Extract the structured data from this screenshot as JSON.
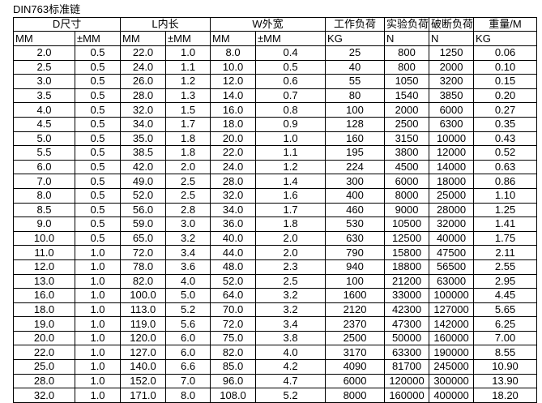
{
  "title": "DIN763标准链",
  "header_groups": [
    "D尺寸",
    "L内长",
    "W外宽",
    "工作负荷",
    "实验负荷",
    "破断负荷",
    "重量/M"
  ],
  "units": [
    "MM",
    "±MM",
    "MM",
    "±MM",
    "MM",
    "±MM",
    "KG",
    "N",
    "N",
    "KG"
  ],
  "rows": [
    [
      "2.0",
      "0.5",
      "22.0",
      "1.0",
      "8.0",
      "0.4",
      "25",
      "800",
      "1250",
      "0.06"
    ],
    [
      "2.5",
      "0.5",
      "24.0",
      "1.1",
      "10.0",
      "0.5",
      "40",
      "800",
      "2000",
      "0.10"
    ],
    [
      "3.0",
      "0.5",
      "26.0",
      "1.2",
      "12.0",
      "0.6",
      "55",
      "1050",
      "3200",
      "0.15"
    ],
    [
      "3.5",
      "0.5",
      "28.0",
      "1.3",
      "14.0",
      "0.7",
      "80",
      "1540",
      "3850",
      "0.20"
    ],
    [
      "4.0",
      "0.5",
      "32.0",
      "1.5",
      "16.0",
      "0.8",
      "100",
      "2000",
      "6000",
      "0.27"
    ],
    [
      "4.5",
      "0.5",
      "34.0",
      "1.7",
      "18.0",
      "0.9",
      "128",
      "2500",
      "6300",
      "0.35"
    ],
    [
      "5.0",
      "0.5",
      "35.0",
      "1.8",
      "20.0",
      "1.0",
      "160",
      "3150",
      "10000",
      "0.43"
    ],
    [
      "5.5",
      "0.5",
      "38.5",
      "1.8",
      "22.0",
      "1.1",
      "195",
      "3800",
      "12000",
      "0.52"
    ],
    [
      "6.0",
      "0.5",
      "42.0",
      "2.0",
      "24.0",
      "1.2",
      "224",
      "4500",
      "14000",
      "0.63"
    ],
    [
      "7.0",
      "0.5",
      "49.0",
      "2.5",
      "28.0",
      "1.4",
      "300",
      "6000",
      "18000",
      "0.86"
    ],
    [
      "8.0",
      "0.5",
      "52.0",
      "2.5",
      "32.0",
      "1.6",
      "400",
      "8000",
      "25000",
      "1.10"
    ],
    [
      "8.5",
      "0.5",
      "56.0",
      "2.8",
      "34.0",
      "1.7",
      "460",
      "9000",
      "28000",
      "1.25"
    ],
    [
      "9.0",
      "0.5",
      "59.0",
      "3.0",
      "36.0",
      "1.8",
      "530",
      "10500",
      "32000",
      "1.41"
    ],
    [
      "10.0",
      "0.5",
      "65.0",
      "3.2",
      "40.0",
      "2.0",
      "630",
      "12500",
      "40000",
      "1.75"
    ],
    [
      "11.0",
      "1.0",
      "72.0",
      "3.4",
      "44.0",
      "2.0",
      "790",
      "15800",
      "47500",
      "2.11"
    ],
    [
      "12.0",
      "1.0",
      "78.0",
      "3.6",
      "48.0",
      "2.3",
      "940",
      "18800",
      "56500",
      "2.55"
    ],
    [
      "13.0",
      "1.0",
      "82.0",
      "4.0",
      "52.0",
      "2.5",
      "100",
      "21200",
      "63000",
      "2.95"
    ],
    [
      "16.0",
      "1.0",
      "100.0",
      "5.0",
      "64.0",
      "3.2",
      "1600",
      "33000",
      "100000",
      "4.45"
    ],
    [
      "18.0",
      "1.0",
      "113.0",
      "5.2",
      "70.0",
      "3.2",
      "2120",
      "42300",
      "127000",
      "5.65"
    ],
    [
      "19.0",
      "1.0",
      "119.0",
      "5.6",
      "72.0",
      "3.4",
      "2370",
      "47300",
      "142000",
      "6.25"
    ],
    [
      "20.0",
      "1.0",
      "120.0",
      "6.0",
      "75.0",
      "3.8",
      "2500",
      "50000",
      "160000",
      "7.00"
    ],
    [
      "22.0",
      "1.0",
      "127.0",
      "6.0",
      "82.0",
      "4.0",
      "3170",
      "63300",
      "190000",
      "8.55"
    ],
    [
      "25.0",
      "1.0",
      "140.0",
      "6.6",
      "85.0",
      "4.2",
      "4090",
      "81700",
      "245000",
      "10.90"
    ],
    [
      "28.0",
      "1.0",
      "152.0",
      "7.0",
      "96.0",
      "4.7",
      "6000",
      "120000",
      "300000",
      "13.90"
    ],
    [
      "32.0",
      "1.0",
      "171.0",
      "8.0",
      "108.0",
      "5.2",
      "8000",
      "160000",
      "400000",
      "18.20"
    ]
  ]
}
